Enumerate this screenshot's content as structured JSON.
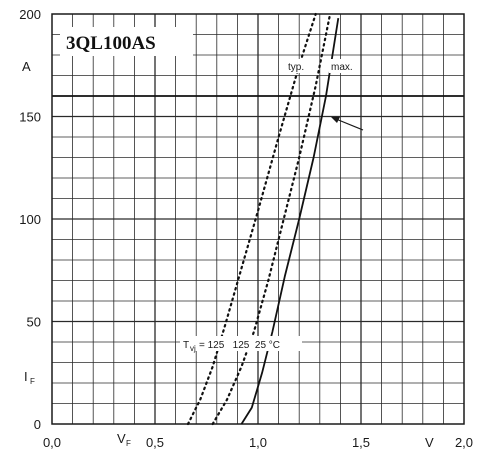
{
  "chart_data": {
    "type": "line",
    "title": "3QL100AS",
    "xlabel": "V",
    "xlabel_symbol": "V",
    "xlabel_sub": "F",
    "xunit": "V",
    "ylabel": "A",
    "ylabel_symbol": "I",
    "ylabel_sub": "F",
    "yunit": "A",
    "xlim": [
      0.0,
      2.0
    ],
    "ylim": [
      0,
      200
    ],
    "x_ticks": [
      "0,0",
      "0,5",
      "1,0",
      "1,5",
      "2,0"
    ],
    "y_ticks": [
      "0",
      "50",
      "100",
      "150",
      "200"
    ],
    "grid": true,
    "series": [
      {
        "name": "typ. 125",
        "line_style": "dotted",
        "x": [
          0.66,
          0.72,
          0.78,
          0.84,
          0.92,
          1.0,
          1.1,
          1.2,
          1.28
        ],
        "y": [
          0,
          12,
          28,
          48,
          76,
          104,
          140,
          175,
          200
        ]
      },
      {
        "name": "max. 125",
        "line_style": "dotted",
        "x": [
          0.78,
          0.85,
          0.92,
          0.98,
          1.05,
          1.12,
          1.2,
          1.28,
          1.35
        ],
        "y": [
          0,
          12,
          28,
          45,
          70,
          98,
          130,
          165,
          200
        ]
      },
      {
        "name": "max. 25",
        "line_style": "solid",
        "x": [
          0.92,
          0.97,
          1.02,
          1.07,
          1.13,
          1.2,
          1.27,
          1.33,
          1.39
        ],
        "y": [
          0,
          8,
          25,
          45,
          72,
          100,
          130,
          160,
          198
        ]
      }
    ],
    "annotations": {
      "typ": "typ.",
      "max": "max.",
      "tvj_symbol": "T",
      "tvj_sub": "vj",
      "tvj_values": "= 125   125  25 °C"
    }
  }
}
